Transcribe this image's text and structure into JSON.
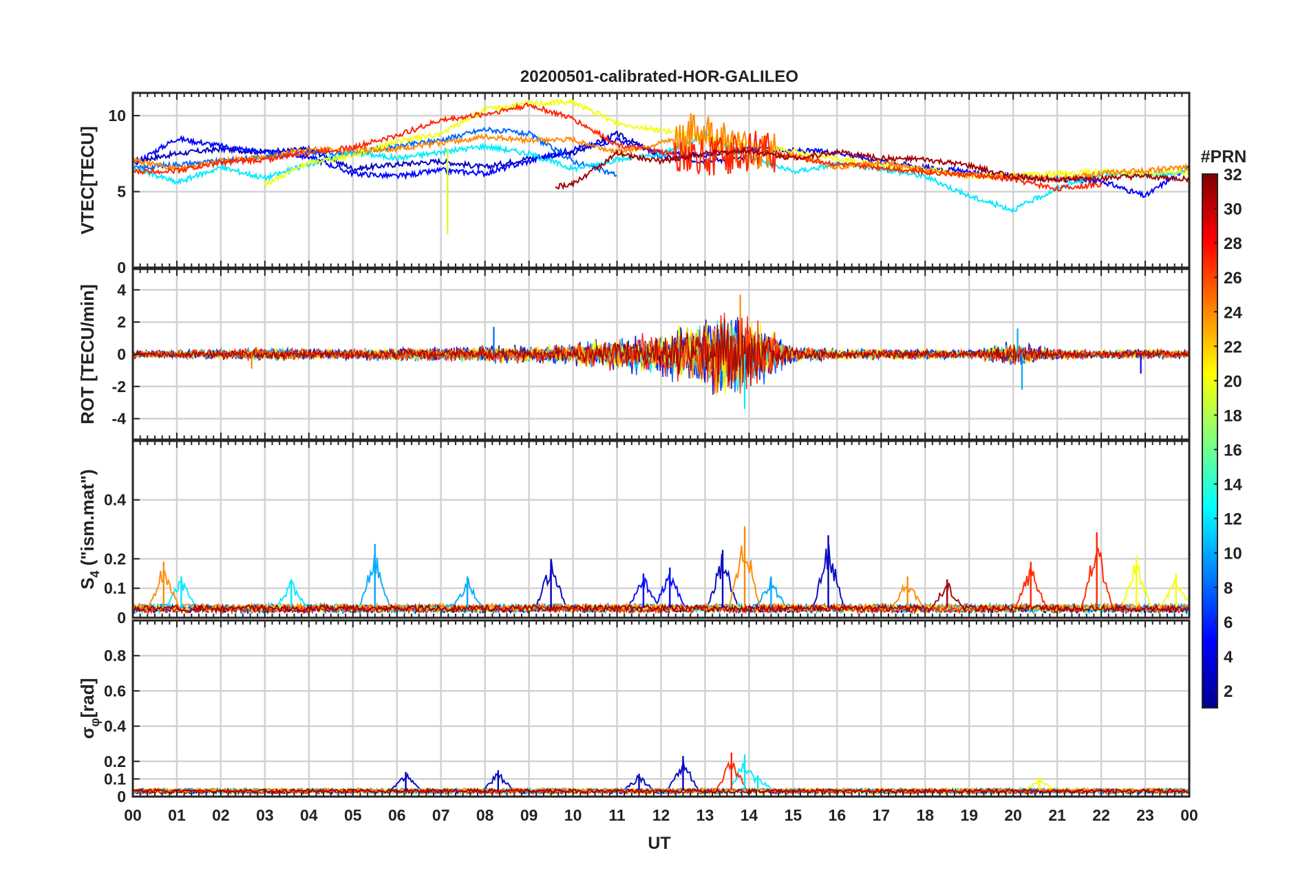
{
  "chart_data": {
    "type": "line",
    "title": "20200501-calibrated-HOR-GALILEO",
    "xlabel": "UT",
    "x_ticks": [
      "00",
      "01",
      "02",
      "03",
      "04",
      "05",
      "06",
      "07",
      "08",
      "09",
      "10",
      "11",
      "12",
      "13",
      "14",
      "15",
      "16",
      "17",
      "18",
      "19",
      "20",
      "21",
      "22",
      "23",
      "00"
    ],
    "xlim": [
      0,
      24
    ],
    "colorbar": {
      "label": "#PRN",
      "range": [
        1,
        32
      ],
      "ticks": [
        "2",
        "4",
        "6",
        "8",
        "10",
        "12",
        "14",
        "16",
        "18",
        "20",
        "22",
        "24",
        "26",
        "28",
        "30",
        "32"
      ],
      "colormap": "jet"
    },
    "panels": [
      {
        "id": "vtec",
        "ylabel": "VTEC[TECU]",
        "ylim": [
          0,
          11.5
        ],
        "y_ticks": [
          0,
          5,
          10
        ],
        "series": [
          {
            "prn": 3,
            "x": [
              0,
              1,
              2,
              3,
              4,
              5,
              6,
              7,
              8,
              9,
              10,
              11,
              12,
              13,
              14
            ],
            "values": [
              7.0,
              7.5,
              7.8,
              7.6,
              7.8,
              6.5,
              6.8,
              7.0,
              6.6,
              7.2,
              7.5,
              8.8,
              7.3,
              7.0,
              7.2
            ]
          },
          {
            "prn": 5,
            "x": [
              0,
              1,
              2,
              3,
              4,
              5,
              6,
              7,
              8,
              9,
              10,
              11,
              12,
              13,
              14,
              15,
              16,
              17,
              18,
              19,
              20,
              21,
              22,
              23,
              24
            ],
            "values": [
              6.8,
              8.5,
              8.0,
              7.6,
              7.3,
              6.2,
              6.0,
              6.4,
              6.2,
              7.0,
              7.8,
              8.4,
              7.5,
              7.4,
              7.8,
              7.7,
              7.6,
              7.0,
              6.6,
              6.3,
              6.0,
              5.8,
              5.7,
              4.7,
              6.7
            ]
          },
          {
            "prn": 8,
            "x": [
              0,
              1,
              2,
              3,
              4,
              5,
              6,
              7,
              8,
              9,
              10,
              11
            ],
            "values": [
              6.5,
              6.8,
              7.0,
              7.3,
              7.6,
              7.5,
              8.0,
              8.4,
              9.1,
              8.8,
              7.0,
              6.1
            ]
          },
          {
            "prn": 12,
            "x": [
              0,
              1,
              2,
              3,
              4,
              5,
              6,
              7,
              8,
              9,
              10,
              11,
              12,
              13,
              14,
              15,
              16,
              17,
              18,
              19,
              20,
              21,
              22,
              23,
              24
            ],
            "values": [
              6.6,
              5.6,
              6.6,
              5.9,
              6.8,
              7.6,
              7.2,
              7.6,
              8.0,
              7.5,
              6.5,
              7.1,
              7.4,
              8.8,
              7.3,
              6.3,
              6.8,
              6.5,
              6.0,
              4.7,
              3.8,
              5.2,
              6.2,
              6.1,
              6.3
            ]
          },
          {
            "prn": 20,
            "x": [
              3,
              4,
              5,
              6,
              7,
              8,
              9,
              10,
              11,
              17,
              18,
              19,
              20,
              21,
              22,
              23,
              24
            ],
            "values": [
              5.5,
              6.9,
              7.4,
              8.3,
              8.8,
              10.4,
              10.8,
              10.9,
              9.5,
              6.7,
              6.5,
              6.0,
              6.1,
              6.2,
              6.3,
              6.2,
              6.3
            ]
          },
          {
            "prn": 24,
            "x": [
              0,
              1,
              2,
              3,
              4,
              5,
              6,
              7,
              8,
              9,
              10,
              11,
              12,
              13,
              14,
              15,
              16,
              17,
              18,
              19,
              20,
              21,
              22,
              23,
              24
            ],
            "values": [
              7.1,
              6.5,
              7.0,
              7.3,
              7.8,
              7.7,
              7.8,
              8.2,
              8.6,
              8.4,
              8.4,
              7.6,
              8.2,
              9.0,
              7.6,
              7.4,
              6.6,
              6.9,
              6.4,
              6.1,
              6.0,
              5.8,
              6.2,
              6.4,
              6.6
            ]
          },
          {
            "prn": 27,
            "x": [
              0,
              1,
              2,
              3,
              4,
              5,
              6,
              7,
              8,
              9,
              10,
              11,
              12,
              13,
              14,
              15,
              16,
              17,
              18,
              19,
              20,
              21,
              22
            ],
            "values": [
              6.3,
              6.4,
              6.9,
              7.1,
              7.6,
              7.9,
              8.7,
              9.7,
              10.1,
              10.7,
              9.8,
              8.1,
              7.6,
              7.2,
              7.7,
              7.3,
              6.8,
              6.6,
              6.3,
              6.1,
              5.8,
              5.2,
              5.5
            ]
          },
          {
            "prn": 31,
            "x": [
              9.6,
              10,
              11,
              12,
              13,
              14,
              15,
              16,
              17,
              18,
              19,
              20,
              21,
              22,
              23,
              24
            ],
            "values": [
              5.3,
              5.5,
              7.5,
              7.0,
              7.5,
              7.7,
              7.2,
              7.6,
              7.2,
              7.1,
              6.7,
              6.0,
              5.8,
              5.9,
              6.0,
              5.8
            ]
          }
        ]
      },
      {
        "id": "rot",
        "ylabel": "ROT [TECU/min]",
        "ylim": [
          -5.3,
          5.3
        ],
        "y_ticks": [
          -4,
          -2,
          0,
          2,
          4
        ],
        "envelope": {
          "x": [
            0,
            1,
            2,
            3,
            4,
            5,
            6,
            7,
            8,
            9,
            10,
            11,
            12,
            13,
            13.5,
            14,
            15,
            16,
            17,
            18,
            19,
            20,
            21,
            22,
            23,
            24
          ],
          "values": [
            0.3,
            0.3,
            0.4,
            0.5,
            0.4,
            0.4,
            0.5,
            0.5,
            0.6,
            0.6,
            0.8,
            1.2,
            1.6,
            2.5,
            3.6,
            2.8,
            0.6,
            0.4,
            0.4,
            0.4,
            0.3,
            0.9,
            0.4,
            0.3,
            0.4,
            0.3
          ]
        },
        "spikes": [
          {
            "prn": 24,
            "x": 2.7,
            "value": -0.9
          },
          {
            "prn": 8,
            "x": 8.2,
            "value": 1.7
          },
          {
            "prn": 24,
            "x": 13.8,
            "value": 3.7
          },
          {
            "prn": 12,
            "x": 13.9,
            "value": -3.4
          },
          {
            "prn": 10,
            "x": 20.1,
            "value": 1.6
          },
          {
            "prn": 10,
            "x": 20.2,
            "value": -2.2
          },
          {
            "prn": 5,
            "x": 22.9,
            "value": -1.2
          }
        ]
      },
      {
        "id": "s4",
        "ylabel": "S4 (\"ism.mat\")",
        "ylabel_main": "S",
        "ylabel_sub": "4",
        "ylabel_rest": " (\"ism.mat\")",
        "ylim": [
          0,
          0.6
        ],
        "y_ticks": [
          0,
          0.1,
          0.2,
          0.4
        ],
        "peaks": [
          {
            "prn": 24,
            "x": 0.7,
            "value": 0.19
          },
          {
            "prn": 12,
            "x": 1.1,
            "value": 0.14
          },
          {
            "prn": 12,
            "x": 3.6,
            "value": 0.13
          },
          {
            "prn": 10,
            "x": 5.5,
            "value": 0.25
          },
          {
            "prn": 10,
            "x": 7.6,
            "value": 0.14
          },
          {
            "prn": 3,
            "x": 9.5,
            "value": 0.2
          },
          {
            "prn": 5,
            "x": 11.6,
            "value": 0.15
          },
          {
            "prn": 5,
            "x": 12.2,
            "value": 0.17
          },
          {
            "prn": 3,
            "x": 13.4,
            "value": 0.23
          },
          {
            "prn": 24,
            "x": 13.9,
            "value": 0.31
          },
          {
            "prn": 10,
            "x": 14.5,
            "value": 0.14
          },
          {
            "prn": 3,
            "x": 15.8,
            "value": 0.28
          },
          {
            "prn": 24,
            "x": 17.6,
            "value": 0.14
          },
          {
            "prn": 31,
            "x": 18.5,
            "value": 0.13
          },
          {
            "prn": 27,
            "x": 20.4,
            "value": 0.19
          },
          {
            "prn": 27,
            "x": 21.9,
            "value": 0.29
          },
          {
            "prn": 20,
            "x": 22.8,
            "value": 0.21
          },
          {
            "prn": 20,
            "x": 23.7,
            "value": 0.15
          }
        ]
      },
      {
        "id": "sigma",
        "ylabel": "σφ[rad]",
        "ylabel_main": "σ",
        "ylabel_sub": "φ",
        "ylabel_rest": "[rad]",
        "ylim": [
          0,
          1.0
        ],
        "y_ticks": [
          0,
          0.1,
          0.2,
          0.4,
          0.6,
          0.8
        ],
        "peaks": [
          {
            "prn": 3,
            "x": 6.2,
            "value": 0.14
          },
          {
            "prn": 3,
            "x": 8.3,
            "value": 0.15
          },
          {
            "prn": 3,
            "x": 11.5,
            "value": 0.13
          },
          {
            "prn": 3,
            "x": 12.5,
            "value": 0.23
          },
          {
            "prn": 27,
            "x": 13.6,
            "value": 0.25
          },
          {
            "prn": 12,
            "x": 13.9,
            "value": 0.24
          },
          {
            "prn": 12,
            "x": 14.2,
            "value": 0.12
          },
          {
            "prn": 20,
            "x": 20.6,
            "value": 0.11
          }
        ]
      }
    ]
  }
}
